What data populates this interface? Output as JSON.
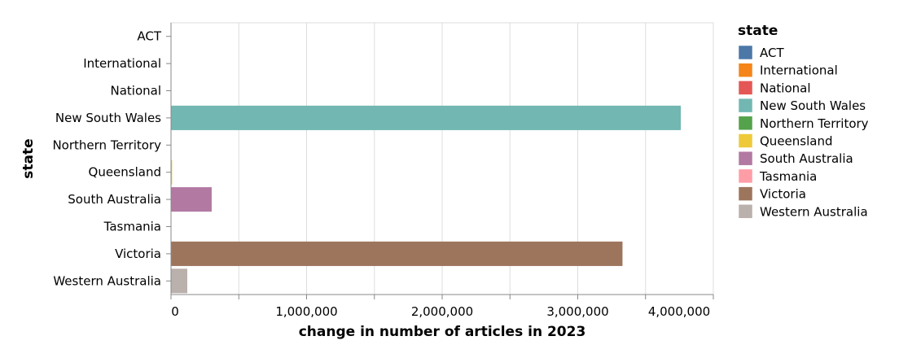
{
  "chart_data": {
    "type": "bar",
    "orientation": "horizontal",
    "xlabel": "change in number of articles in 2023",
    "ylabel": "state",
    "xlim": [
      0,
      4000000
    ],
    "x_ticks": [
      0,
      1000000,
      2000000,
      3000000,
      4000000
    ],
    "x_tick_labels": [
      "0",
      "1,000,000",
      "2,000,000",
      "3,000,000",
      "4,000,000"
    ],
    "grid": true,
    "legend": {
      "title": "state",
      "placement": "right"
    },
    "categories": [
      "ACT",
      "International",
      "National",
      "New South Wales",
      "Northern Territory",
      "Queensland",
      "South Australia",
      "Tasmania",
      "Victoria",
      "Western Australia"
    ],
    "values": [
      0,
      0,
      0,
      3760000,
      0,
      8000,
      300000,
      0,
      3330000,
      120000
    ],
    "colors": [
      "#4c78a8",
      "#f58518",
      "#e45756",
      "#72b7b2",
      "#54a24b",
      "#eeca3b",
      "#b279a2",
      "#ff9da6",
      "#9d755d",
      "#bab0ac"
    ]
  }
}
